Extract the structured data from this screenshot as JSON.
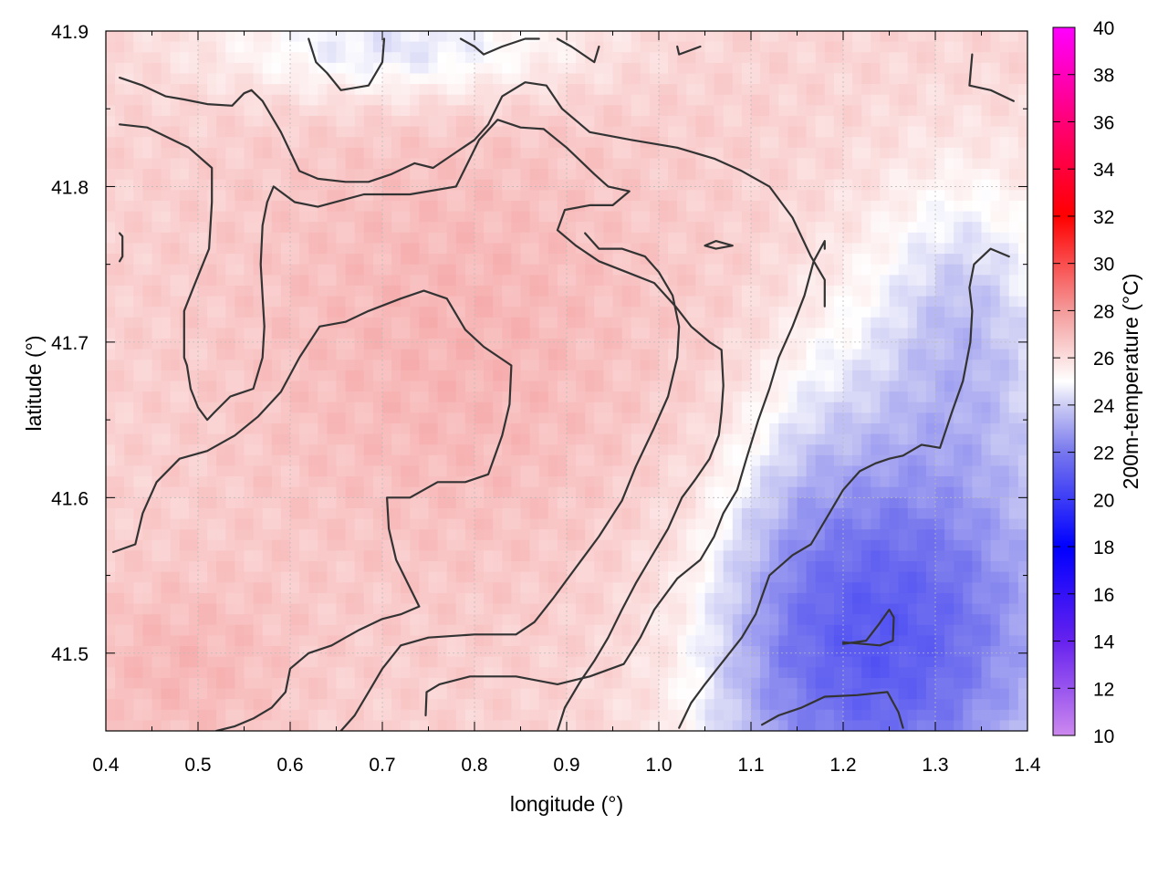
{
  "chart_data": {
    "type": "heatmap",
    "xlabel": "longitude (°)",
    "ylabel": "latitude (°)",
    "colorbar_label": "200m-temperature (°C)",
    "xlim": [
      0.4,
      1.4
    ],
    "ylim": [
      41.45,
      41.9
    ],
    "x_ticks": [
      "0.4",
      "0.5",
      "0.6",
      "0.7",
      "0.8",
      "0.9",
      "1.0",
      "1.1",
      "1.2",
      "1.3",
      "1.4"
    ],
    "y_ticks": [
      "41.5",
      "41.6",
      "41.7",
      "41.8",
      "41.9"
    ],
    "colorbar_range": [
      10,
      40
    ],
    "colorbar_ticks": [
      "10",
      "12",
      "14",
      "16",
      "18",
      "20",
      "22",
      "24",
      "26",
      "28",
      "30",
      "32",
      "34",
      "36",
      "38",
      "40"
    ],
    "colorscale": [
      {
        "value": 10,
        "color": "#cc88ee"
      },
      {
        "value": 14,
        "color": "#6622ee"
      },
      {
        "value": 18,
        "color": "#0000ff"
      },
      {
        "value": 22,
        "color": "#7777ee"
      },
      {
        "value": 24,
        "color": "#ccccf4"
      },
      {
        "value": 25,
        "color": "#ffffff"
      },
      {
        "value": 28,
        "color": "#f49a9a"
      },
      {
        "value": 32,
        "color": "#ff0000"
      },
      {
        "value": 36,
        "color": "#ff0077"
      },
      {
        "value": 40,
        "color": "#ff00ff"
      }
    ],
    "grid": true,
    "field_summary": {
      "warm_core_center": [
        0.78,
        41.7
      ],
      "warm_core_value": 27.2,
      "cool_region_center": [
        1.24,
        41.5
      ],
      "cool_region_value": 22.5,
      "typical_value": 26.3
    },
    "contour_levels": [
      25,
      26,
      27
    ],
    "contours": [
      {
        "level": 26,
        "points": [
          [
            0.415,
            41.87
          ],
          [
            0.44,
            41.865
          ],
          [
            0.465,
            41.858
          ],
          [
            0.485,
            41.856
          ],
          [
            0.51,
            41.853
          ],
          [
            0.537,
            41.852
          ],
          [
            0.55,
            41.86
          ],
          [
            0.558,
            41.862
          ],
          [
            0.57,
            41.855
          ],
          [
            0.59,
            41.835
          ],
          [
            0.61,
            41.81
          ],
          [
            0.63,
            41.805
          ],
          [
            0.66,
            41.803
          ],
          [
            0.685,
            41.803
          ],
          [
            0.71,
            41.808
          ],
          [
            0.735,
            41.815
          ],
          [
            0.755,
            41.812
          ],
          [
            0.78,
            41.822
          ],
          [
            0.8,
            41.83
          ],
          [
            0.815,
            41.84
          ],
          [
            0.83,
            41.858
          ],
          [
            0.855,
            41.867
          ],
          [
            0.878,
            41.865
          ],
          [
            0.895,
            41.85
          ],
          [
            0.925,
            41.835
          ],
          [
            0.97,
            41.83
          ],
          [
            1.02,
            41.825
          ],
          [
            1.06,
            41.818
          ],
          [
            1.09,
            41.81
          ],
          [
            1.12,
            41.8
          ],
          [
            1.145,
            41.78
          ],
          [
            1.165,
            41.755
          ],
          [
            1.18,
            41.74
          ],
          [
            1.18,
            41.723
          ]
        ]
      },
      {
        "level": 26,
        "points": [
          [
            0.415,
            41.84
          ],
          [
            0.445,
            41.838
          ],
          [
            0.49,
            41.825
          ],
          [
            0.515,
            41.812
          ],
          [
            0.515,
            41.79
          ],
          [
            0.512,
            41.76
          ],
          [
            0.495,
            41.735
          ],
          [
            0.485,
            41.72
          ],
          [
            0.485,
            41.69
          ],
          [
            0.488,
            41.685
          ],
          [
            0.492,
            41.67
          ],
          [
            0.5,
            41.658
          ],
          [
            0.51,
            41.65
          ],
          [
            0.518,
            41.655
          ],
          [
            0.535,
            41.665
          ],
          [
            0.56,
            41.67
          ],
          [
            0.57,
            41.69
          ],
          [
            0.572,
            41.71
          ],
          [
            0.57,
            41.73
          ],
          [
            0.568,
            41.75
          ],
          [
            0.57,
            41.775
          ],
          [
            0.575,
            41.79
          ],
          [
            0.582,
            41.8
          ],
          [
            0.605,
            41.79
          ],
          [
            0.63,
            41.787
          ],
          [
            0.68,
            41.795
          ],
          [
            0.73,
            41.795
          ],
          [
            0.78,
            41.8
          ],
          [
            0.805,
            41.83
          ],
          [
            0.825,
            41.843
          ],
          [
            0.85,
            41.838
          ],
          [
            0.875,
            41.837
          ],
          [
            0.9,
            41.825
          ],
          [
            0.93,
            41.808
          ],
          [
            0.945,
            41.8
          ],
          [
            0.968,
            41.797
          ],
          [
            0.95,
            41.788
          ],
          [
            0.925,
            41.788
          ],
          [
            0.898,
            41.785
          ],
          [
            0.89,
            41.772
          ],
          [
            0.91,
            41.762
          ],
          [
            0.935,
            41.752
          ],
          [
            0.965,
            41.745
          ],
          [
            0.995,
            41.738
          ],
          [
            1.018,
            41.723
          ],
          [
            1.035,
            41.71
          ],
          [
            1.055,
            41.7
          ],
          [
            1.068,
            41.695
          ],
          [
            1.07,
            41.672
          ],
          [
            1.068,
            41.655
          ],
          [
            1.065,
            41.64
          ],
          [
            1.055,
            41.625
          ],
          [
            1.04,
            41.612
          ],
          [
            1.025,
            41.6
          ],
          [
            1.01,
            41.58
          ],
          [
            0.99,
            41.56
          ],
          [
            0.975,
            41.545
          ],
          [
            0.96,
            41.528
          ],
          [
            0.945,
            41.51
          ],
          [
            0.93,
            41.495
          ],
          [
            0.915,
            41.482
          ],
          [
            0.898,
            41.465
          ],
          [
            0.89,
            41.45
          ]
        ]
      },
      {
        "level": 27,
        "points": [
          [
            0.408,
            41.565
          ],
          [
            0.432,
            41.57
          ],
          [
            0.44,
            41.59
          ],
          [
            0.455,
            41.61
          ],
          [
            0.48,
            41.625
          ],
          [
            0.51,
            41.63
          ],
          [
            0.54,
            41.64
          ],
          [
            0.565,
            41.652
          ],
          [
            0.59,
            41.668
          ],
          [
            0.61,
            41.69
          ],
          [
            0.632,
            41.71
          ],
          [
            0.66,
            41.713
          ],
          [
            0.685,
            41.72
          ],
          [
            0.72,
            41.728
          ],
          [
            0.745,
            41.733
          ],
          [
            0.77,
            41.728
          ],
          [
            0.79,
            41.708
          ],
          [
            0.81,
            41.697
          ],
          [
            0.84,
            41.685
          ],
          [
            0.838,
            41.66
          ],
          [
            0.83,
            41.64
          ],
          [
            0.815,
            41.615
          ],
          [
            0.79,
            41.61
          ],
          [
            0.76,
            41.61
          ],
          [
            0.73,
            41.6
          ],
          [
            0.705,
            41.6
          ],
          [
            0.707,
            41.58
          ],
          [
            0.715,
            41.56
          ],
          [
            0.74,
            41.53
          ],
          [
            0.72,
            41.525
          ],
          [
            0.7,
            41.522
          ],
          [
            0.675,
            41.515
          ],
          [
            0.66,
            41.51
          ],
          [
            0.645,
            41.505
          ],
          [
            0.62,
            41.5
          ],
          [
            0.6,
            41.49
          ],
          [
            0.595,
            41.475
          ],
          [
            0.58,
            41.465
          ],
          [
            0.56,
            41.458
          ],
          [
            0.54,
            41.453
          ],
          [
            0.52,
            41.45
          ]
        ]
      },
      {
        "level": 27,
        "points": [
          [
            0.655,
            41.45
          ],
          [
            0.67,
            41.46
          ],
          [
            0.685,
            41.475
          ],
          [
            0.7,
            41.49
          ],
          [
            0.72,
            41.505
          ],
          [
            0.75,
            41.51
          ],
          [
            0.8,
            41.512
          ],
          [
            0.845,
            41.512
          ],
          [
            0.865,
            41.52
          ],
          [
            0.885,
            41.535
          ],
          [
            0.91,
            41.555
          ],
          [
            0.935,
            41.575
          ],
          [
            0.96,
            41.598
          ],
          [
            0.975,
            41.62
          ],
          [
            0.995,
            41.645
          ],
          [
            1.01,
            41.665
          ],
          [
            1.02,
            41.69
          ],
          [
            1.022,
            41.71
          ],
          [
            1.015,
            41.73
          ],
          [
            1.0,
            41.745
          ],
          [
            0.985,
            41.755
          ],
          [
            0.96,
            41.76
          ],
          [
            0.935,
            41.76
          ],
          [
            0.92,
            41.77
          ]
        ]
      },
      {
        "level": 25,
        "points": [
          [
            0.747,
            41.46
          ],
          [
            0.748,
            41.475
          ],
          [
            0.762,
            41.48
          ],
          [
            0.795,
            41.485
          ],
          [
            0.845,
            41.485
          ],
          [
            0.89,
            41.48
          ],
          [
            0.925,
            41.485
          ],
          [
            0.962,
            41.493
          ],
          [
            0.98,
            41.51
          ],
          [
            0.995,
            41.528
          ],
          [
            1.02,
            41.548
          ],
          [
            1.045,
            41.56
          ],
          [
            1.06,
            41.575
          ],
          [
            1.07,
            41.59
          ],
          [
            1.085,
            41.605
          ],
          [
            1.095,
            41.625
          ],
          [
            1.108,
            41.65
          ],
          [
            1.12,
            41.67
          ],
          [
            1.13,
            41.69
          ],
          [
            1.145,
            41.71
          ],
          [
            1.158,
            41.73
          ],
          [
            1.168,
            41.752
          ],
          [
            1.18,
            41.765
          ],
          [
            1.18,
            41.76
          ]
        ]
      },
      {
        "level": 25,
        "points": [
          [
            1.022,
            41.452
          ],
          [
            1.035,
            41.468
          ],
          [
            1.05,
            41.48
          ],
          [
            1.07,
            41.495
          ],
          [
            1.09,
            41.51
          ],
          [
            1.105,
            41.525
          ],
          [
            1.12,
            41.55
          ],
          [
            1.145,
            41.563
          ],
          [
            1.165,
            41.57
          ],
          [
            1.185,
            41.59
          ],
          [
            1.2,
            41.605
          ],
          [
            1.218,
            41.617
          ],
          [
            1.235,
            41.622
          ],
          [
            1.25,
            41.625
          ],
          [
            1.265,
            41.627
          ],
          [
            1.285,
            41.634
          ],
          [
            1.305,
            41.632
          ],
          [
            1.318,
            41.655
          ],
          [
            1.33,
            41.675
          ],
          [
            1.338,
            41.7
          ],
          [
            1.34,
            41.72
          ],
          [
            1.337,
            41.735
          ],
          [
            1.342,
            41.75
          ],
          [
            1.36,
            41.76
          ],
          [
            1.38,
            41.755
          ]
        ]
      },
      {
        "level": 24,
        "points": [
          [
            1.2,
            41.506
          ],
          [
            1.225,
            41.508
          ],
          [
            1.238,
            41.518
          ],
          [
            1.25,
            41.528
          ],
          [
            1.255,
            41.523
          ],
          [
            1.254,
            41.508
          ],
          [
            1.24,
            41.505
          ],
          [
            1.2,
            41.507
          ]
        ]
      },
      {
        "level": 24,
        "points": [
          [
            1.112,
            41.454
          ],
          [
            1.13,
            41.46
          ],
          [
            1.155,
            41.465
          ],
          [
            1.18,
            41.472
          ],
          [
            1.215,
            41.473
          ],
          [
            1.248,
            41.475
          ],
          [
            1.26,
            41.462
          ],
          [
            1.265,
            41.452
          ]
        ]
      },
      {
        "level": 24,
        "points": [
          [
            1.05,
            41.762
          ],
          [
            1.062,
            41.765
          ],
          [
            1.08,
            41.762
          ],
          [
            1.062,
            41.76
          ],
          [
            1.05,
            41.762
          ]
        ]
      },
      {
        "level": 24,
        "points": [
          [
            0.62,
            41.895
          ],
          [
            0.628,
            41.88
          ],
          [
            0.64,
            41.873
          ],
          [
            0.655,
            41.862
          ],
          [
            0.685,
            41.865
          ],
          [
            0.7,
            41.88
          ],
          [
            0.702,
            41.895
          ]
        ]
      },
      {
        "level": 25,
        "points": [
          [
            0.785,
            41.895
          ],
          [
            0.8,
            41.89
          ],
          [
            0.81,
            41.885
          ],
          [
            0.83,
            41.89
          ],
          [
            0.855,
            41.895
          ],
          [
            0.87,
            41.895
          ]
        ]
      },
      {
        "level": 25,
        "points": [
          [
            0.89,
            41.895
          ],
          [
            0.905,
            41.89
          ],
          [
            0.93,
            41.88
          ],
          [
            0.935,
            41.89
          ]
        ]
      },
      {
        "level": 25,
        "points": [
          [
            1.02,
            41.89
          ],
          [
            1.022,
            41.885
          ],
          [
            1.045,
            41.89
          ]
        ]
      },
      {
        "level": 25,
        "points": [
          [
            1.34,
            41.885
          ],
          [
            1.337,
            41.865
          ],
          [
            1.36,
            41.862
          ],
          [
            1.385,
            41.855
          ]
        ]
      },
      {
        "level": 26,
        "points": [
          [
            0.415,
            41.77
          ],
          [
            0.418,
            41.768
          ],
          [
            0.418,
            41.755
          ],
          [
            0.415,
            41.752
          ]
        ]
      }
    ]
  }
}
